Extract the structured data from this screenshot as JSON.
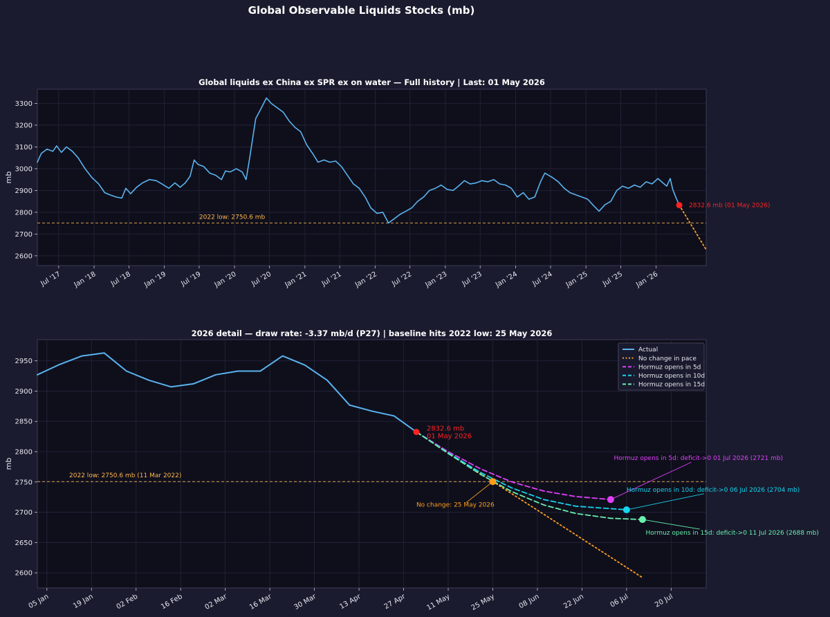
{
  "suptitle": "Global Observable Liquids Stocks  (mb)",
  "colors": {
    "background": "#1a1b2e",
    "plot_bg": "#0f0f1c",
    "actual": "#5ab4f0",
    "no_change": "#ff9f1c",
    "low_line": "#ffb74d",
    "last_point": "#ff2222",
    "hormuz_5d": "#e040fb",
    "hormuz_10d": "#18d4f0",
    "hormuz_15d": "#69f0ae"
  },
  "chart_data": [
    {
      "type": "line",
      "title": "Global liquids ex China ex SPR ex on water  —  Full history  |  Last: 01 May 2026",
      "ylabel": "mb",
      "xlabel": "",
      "ylim": [
        2555,
        3365
      ],
      "yticks": [
        2600,
        2700,
        2800,
        2900,
        3000,
        3100,
        3200,
        3300
      ],
      "xlim": [
        "2017-03-12",
        "2026-09-18"
      ],
      "xticks": [
        {
          "date": "2017-07-01",
          "label": "Jul '17"
        },
        {
          "date": "2018-01-01",
          "label": "Jan '18"
        },
        {
          "date": "2018-07-01",
          "label": "Jul '18"
        },
        {
          "date": "2019-01-01",
          "label": "Jan '19"
        },
        {
          "date": "2019-07-01",
          "label": "Jul '19"
        },
        {
          "date": "2020-01-01",
          "label": "Jan '20"
        },
        {
          "date": "2020-07-01",
          "label": "Jul '20"
        },
        {
          "date": "2021-01-01",
          "label": "Jan '21"
        },
        {
          "date": "2021-07-01",
          "label": "Jul '21"
        },
        {
          "date": "2022-01-01",
          "label": "Jan '22"
        },
        {
          "date": "2022-07-01",
          "label": "Jul '22"
        },
        {
          "date": "2023-01-01",
          "label": "Jan '23"
        },
        {
          "date": "2023-07-01",
          "label": "Jul '23"
        },
        {
          "date": "2024-01-01",
          "label": "Jan '24"
        },
        {
          "date": "2024-07-01",
          "label": "Jul '24"
        },
        {
          "date": "2025-01-01",
          "label": "Jan '25"
        },
        {
          "date": "2025-07-01",
          "label": "Jul '25"
        },
        {
          "date": "2026-01-01",
          "label": "Jan '26"
        }
      ],
      "grid": true,
      "series": [
        {
          "key": "actual",
          "points": [
            [
              "2017-03-12",
              3030
            ],
            [
              "2017-04-01",
              3070
            ],
            [
              "2017-05-01",
              3090
            ],
            [
              "2017-06-01",
              3080
            ],
            [
              "2017-06-20",
              3105
            ],
            [
              "2017-07-15",
              3075
            ],
            [
              "2017-08-10",
              3100
            ],
            [
              "2017-09-10",
              3080
            ],
            [
              "2017-10-10",
              3050
            ],
            [
              "2017-11-15",
              3000
            ],
            [
              "2017-12-20",
              2960
            ],
            [
              "2018-01-25",
              2930
            ],
            [
              "2018-02-25",
              2890
            ],
            [
              "2018-03-25",
              2880
            ],
            [
              "2018-04-25",
              2870
            ],
            [
              "2018-05-25",
              2865
            ],
            [
              "2018-06-15",
              2910
            ],
            [
              "2018-07-10",
              2885
            ],
            [
              "2018-08-10",
              2915
            ],
            [
              "2018-09-10",
              2935
            ],
            [
              "2018-10-15",
              2950
            ],
            [
              "2018-11-20",
              2945
            ],
            [
              "2018-12-20",
              2930
            ],
            [
              "2019-01-25",
              2910
            ],
            [
              "2019-02-25",
              2935
            ],
            [
              "2019-03-25",
              2915
            ],
            [
              "2019-04-20",
              2935
            ],
            [
              "2019-05-15",
              2965
            ],
            [
              "2019-06-05",
              3040
            ],
            [
              "2019-06-25",
              3020
            ],
            [
              "2019-07-25",
              3010
            ],
            [
              "2019-08-25",
              2980
            ],
            [
              "2019-09-25",
              2970
            ],
            [
              "2019-10-25",
              2950
            ],
            [
              "2019-11-15",
              2990
            ],
            [
              "2019-12-10",
              2985
            ],
            [
              "2020-01-10",
              3000
            ],
            [
              "2020-02-10",
              2985
            ],
            [
              "2020-03-01",
              2950
            ],
            [
              "2020-03-20",
              3050
            ],
            [
              "2020-04-20",
              3230
            ],
            [
              "2020-05-20",
              3280
            ],
            [
              "2020-06-15",
              3325
            ],
            [
              "2020-07-10",
              3300
            ],
            [
              "2020-08-10",
              3280
            ],
            [
              "2020-09-10",
              3260
            ],
            [
              "2020-10-10",
              3220
            ],
            [
              "2020-11-10",
              3190
            ],
            [
              "2020-12-10",
              3170
            ],
            [
              "2021-01-10",
              3110
            ],
            [
              "2021-02-10",
              3070
            ],
            [
              "2021-03-10",
              3030
            ],
            [
              "2021-04-10",
              3040
            ],
            [
              "2021-05-10",
              3030
            ],
            [
              "2021-06-10",
              3035
            ],
            [
              "2021-07-10",
              3010
            ],
            [
              "2021-08-10",
              2970
            ],
            [
              "2021-09-10",
              2930
            ],
            [
              "2021-10-10",
              2910
            ],
            [
              "2021-11-10",
              2870
            ],
            [
              "2021-12-10",
              2820
            ],
            [
              "2022-01-10",
              2795
            ],
            [
              "2022-02-10",
              2800
            ],
            [
              "2022-03-11",
              2750.6
            ],
            [
              "2022-04-10",
              2770
            ],
            [
              "2022-05-10",
              2790
            ],
            [
              "2022-06-10",
              2805
            ],
            [
              "2022-07-10",
              2820
            ],
            [
              "2022-08-10",
              2850
            ],
            [
              "2022-09-10",
              2870
            ],
            [
              "2022-10-10",
              2900
            ],
            [
              "2022-11-10",
              2910
            ],
            [
              "2022-12-10",
              2925
            ],
            [
              "2023-01-10",
              2905
            ],
            [
              "2023-02-10",
              2900
            ],
            [
              "2023-03-10",
              2920
            ],
            [
              "2023-04-10",
              2945
            ],
            [
              "2023-05-10",
              2930
            ],
            [
              "2023-06-10",
              2935
            ],
            [
              "2023-07-10",
              2945
            ],
            [
              "2023-08-10",
              2940
            ],
            [
              "2023-09-10",
              2950
            ],
            [
              "2023-10-10",
              2930
            ],
            [
              "2023-11-10",
              2925
            ],
            [
              "2023-12-10",
              2910
            ],
            [
              "2024-01-10",
              2870
            ],
            [
              "2024-02-10",
              2890
            ],
            [
              "2024-03-10",
              2860
            ],
            [
              "2024-04-10",
              2870
            ],
            [
              "2024-05-10",
              2940
            ],
            [
              "2024-06-01",
              2980
            ],
            [
              "2024-07-10",
              2960
            ],
            [
              "2024-08-10",
              2940
            ],
            [
              "2024-09-10",
              2910
            ],
            [
              "2024-10-10",
              2890
            ],
            [
              "2024-11-10",
              2880
            ],
            [
              "2024-12-10",
              2870
            ],
            [
              "2025-01-10",
              2860
            ],
            [
              "2025-02-10",
              2830
            ],
            [
              "2025-03-10",
              2805
            ],
            [
              "2025-04-10",
              2835
            ],
            [
              "2025-05-10",
              2850
            ],
            [
              "2025-06-10",
              2900
            ],
            [
              "2025-07-10",
              2920
            ],
            [
              "2025-08-10",
              2910
            ],
            [
              "2025-09-10",
              2925
            ],
            [
              "2025-10-10",
              2915
            ],
            [
              "2025-11-10",
              2940
            ],
            [
              "2025-12-10",
              2930
            ],
            [
              "2026-01-10",
              2955
            ],
            [
              "2026-02-05",
              2935
            ],
            [
              "2026-02-25",
              2920
            ],
            [
              "2026-03-15",
              2955
            ],
            [
              "2026-03-28",
              2905
            ],
            [
              "2026-04-15",
              2865
            ],
            [
              "2026-05-01",
              2832.6
            ]
          ]
        },
        {
          "key": "no_change",
          "dashed": "dotted",
          "points": [
            [
              "2026-05-01",
              2832.6
            ],
            [
              "2026-09-18",
              2628
            ]
          ]
        }
      ],
      "hline": {
        "value": 2750.6,
        "label": "2022 low: 2750.6 mb",
        "label_date": "2019-07-01"
      },
      "marker": {
        "date": "2026-05-01",
        "value": 2832.6,
        "label": "2832.6 mb  (01 May 2026)"
      }
    },
    {
      "type": "line",
      "title": "2026 detail  —  draw rate: -3.37 mb/d (P27)  |  baseline hits 2022 low: 25 May 2026",
      "ylabel": "mb",
      "xlabel": "",
      "ylim": [
        2575,
        2985
      ],
      "yticks": [
        2600,
        2650,
        2700,
        2750,
        2800,
        2850,
        2900,
        2950
      ],
      "xlim": [
        "2026-01-02",
        "2026-07-31"
      ],
      "xticks": [
        {
          "date": "2026-01-05",
          "label": "05 Jan"
        },
        {
          "date": "2026-01-19",
          "label": "19 Jan"
        },
        {
          "date": "2026-02-02",
          "label": "02 Feb"
        },
        {
          "date": "2026-02-16",
          "label": "16 Feb"
        },
        {
          "date": "2026-03-02",
          "label": "02 Mar"
        },
        {
          "date": "2026-03-16",
          "label": "16 Mar"
        },
        {
          "date": "2026-03-30",
          "label": "30 Mar"
        },
        {
          "date": "2026-04-13",
          "label": "13 Apr"
        },
        {
          "date": "2026-04-27",
          "label": "27 Apr"
        },
        {
          "date": "2026-05-11",
          "label": "11 May"
        },
        {
          "date": "2026-05-25",
          "label": "25 May"
        },
        {
          "date": "2026-06-08",
          "label": "08 Jun"
        },
        {
          "date": "2026-06-22",
          "label": "22 Jun"
        },
        {
          "date": "2026-07-06",
          "label": "06 Jul"
        },
        {
          "date": "2026-07-20",
          "label": "20 Jul"
        }
      ],
      "grid": true,
      "legend_position": "top-right",
      "legend": [
        {
          "key": "actual",
          "label": "Actual",
          "style": "solid"
        },
        {
          "key": "no_change",
          "label": "No change in pace",
          "style": "dotted"
        },
        {
          "key": "hormuz_5d",
          "label": "Hormuz opens in 5d",
          "style": "dashed"
        },
        {
          "key": "hormuz_10d",
          "label": "Hormuz opens in 10d",
          "style": "dashed"
        },
        {
          "key": "hormuz_15d",
          "label": "Hormuz opens in 15d",
          "style": "dashed"
        }
      ],
      "series": [
        {
          "key": "actual",
          "points": [
            [
              "2026-01-02",
              2927
            ],
            [
              "2026-01-09",
              2944
            ],
            [
              "2026-01-16",
              2958
            ],
            [
              "2026-01-23",
              2963
            ],
            [
              "2026-01-30",
              2933
            ],
            [
              "2026-02-06",
              2918
            ],
            [
              "2026-02-13",
              2907
            ],
            [
              "2026-02-20",
              2912
            ],
            [
              "2026-02-27",
              2927
            ],
            [
              "2026-03-06",
              2933
            ],
            [
              "2026-03-13",
              2933
            ],
            [
              "2026-03-20",
              2958
            ],
            [
              "2026-03-27",
              2943
            ],
            [
              "2026-04-03",
              2918
            ],
            [
              "2026-04-10",
              2877
            ],
            [
              "2026-04-17",
              2867
            ],
            [
              "2026-04-24",
              2859
            ],
            [
              "2026-05-01",
              2832.6
            ]
          ]
        },
        {
          "key": "no_change",
          "dashed": "dotted",
          "points": [
            [
              "2026-05-01",
              2832.6
            ],
            [
              "2026-05-25",
              2750.6
            ],
            [
              "2026-07-11",
              2592
            ]
          ]
        },
        {
          "key": "hormuz_5d",
          "dashed": "dashed",
          "points": [
            [
              "2026-05-01",
              2832.6
            ],
            [
              "2026-05-11",
              2800
            ],
            [
              "2026-05-21",
              2772
            ],
            [
              "2026-05-31",
              2750
            ],
            [
              "2026-06-10",
              2735
            ],
            [
              "2026-06-20",
              2726
            ],
            [
              "2026-07-01",
              2721
            ]
          ]
        },
        {
          "key": "hormuz_10d",
          "dashed": "dashed",
          "points": [
            [
              "2026-05-01",
              2832.6
            ],
            [
              "2026-05-11",
              2798
            ],
            [
              "2026-05-21",
              2766
            ],
            [
              "2026-05-31",
              2740
            ],
            [
              "2026-06-10",
              2721
            ],
            [
              "2026-06-20",
              2710
            ],
            [
              "2026-07-06",
              2704
            ]
          ]
        },
        {
          "key": "hormuz_15d",
          "dashed": "dashed",
          "points": [
            [
              "2026-05-01",
              2832.6
            ],
            [
              "2026-05-11",
              2797
            ],
            [
              "2026-05-21",
              2763
            ],
            [
              "2026-05-31",
              2734
            ],
            [
              "2026-06-10",
              2712
            ],
            [
              "2026-06-20",
              2698
            ],
            [
              "2026-07-01",
              2690
            ],
            [
              "2026-07-11",
              2688
            ]
          ]
        }
      ],
      "hline": {
        "value": 2750.6,
        "label": "2022 low: 2750.6 mb  (11 Mar 2022)",
        "label_date": "2026-01-12"
      },
      "marker": {
        "date": "2026-05-01",
        "value": 2832.6,
        "label_line1": "2832.6 mb",
        "label_line2": "01 May 2026"
      },
      "annotations": [
        {
          "key": "no_change",
          "date": "2026-05-25",
          "value": 2750.6,
          "text": "No change: 25 May 2026",
          "text_date": "2026-05-01",
          "text_value": 2709,
          "anchor": "start"
        },
        {
          "key": "hormuz_5d",
          "date": "2026-07-01",
          "value": 2721,
          "text": "Hormuz opens in 5d: deficit->0  01 Jul 2026  (2721 mb)",
          "text_date": "2026-07-02",
          "text_value": 2786,
          "anchor": "start"
        },
        {
          "key": "hormuz_10d",
          "date": "2026-07-06",
          "value": 2704,
          "text": "Hormuz opens in 10d: deficit->0  06 Jul 2026  (2704 mb)",
          "text_date": "2026-07-06",
          "text_value": 2734,
          "anchor": "start"
        },
        {
          "key": "hormuz_15d",
          "date": "2026-07-11",
          "value": 2688,
          "text": "Hormuz opens in 15d: deficit->0  11 Jul 2026  (2688 mb)",
          "text_date": "2026-07-12",
          "text_value": 2663,
          "anchor": "start"
        }
      ]
    }
  ]
}
